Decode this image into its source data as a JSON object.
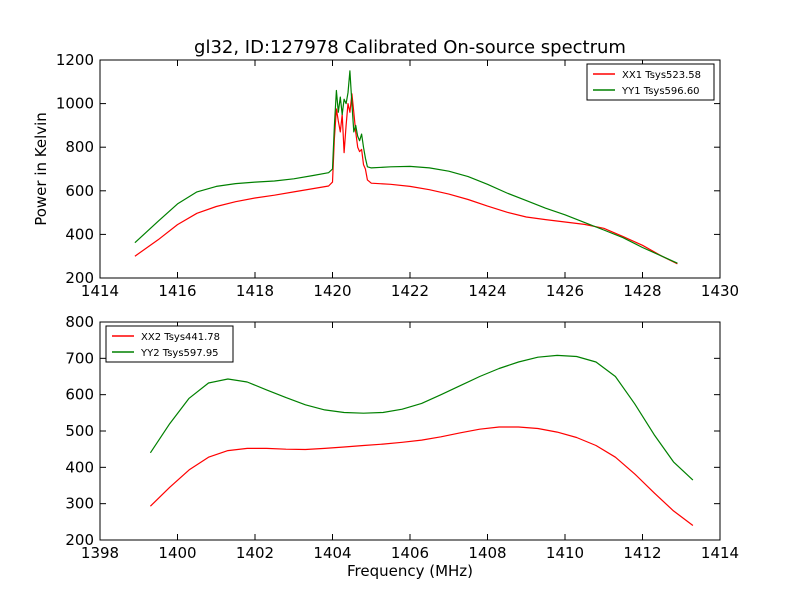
{
  "chart_data": [
    {
      "type": "line",
      "title": "gl32, ID:127978 Calibrated On-source spectrum",
      "xlabel": "",
      "ylabel": "Power in Kelvin",
      "xlim": [
        1414,
        1430
      ],
      "ylim": [
        200,
        1200
      ],
      "xticks": [
        1414,
        1416,
        1418,
        1420,
        1422,
        1424,
        1426,
        1428,
        1430
      ],
      "yticks": [
        200,
        400,
        600,
        800,
        1000,
        1200
      ],
      "legend_position": "top-right",
      "series": [
        {
          "name": "XX1 Tsys523.58",
          "color": "#ff0000",
          "x": [
            1414.9,
            1415.5,
            1416.0,
            1416.5,
            1417.0,
            1417.5,
            1418.0,
            1418.5,
            1419.0,
            1419.5,
            1419.9,
            1420.0,
            1420.05,
            1420.1,
            1420.15,
            1420.2,
            1420.25,
            1420.3,
            1420.35,
            1420.4,
            1420.45,
            1420.5,
            1420.55,
            1420.6,
            1420.65,
            1420.7,
            1420.75,
            1420.8,
            1420.85,
            1420.9,
            1421.0,
            1421.5,
            1422.0,
            1422.5,
            1423.0,
            1423.5,
            1424.0,
            1424.5,
            1425.0,
            1425.5,
            1426.0,
            1426.5,
            1427.0,
            1427.5,
            1428.0,
            1428.5,
            1428.9
          ],
          "values": [
            300,
            375,
            445,
            497,
            528,
            550,
            567,
            580,
            595,
            610,
            622,
            640,
            840,
            975,
            920,
            870,
            950,
            775,
            900,
            1000,
            960,
            1045,
            960,
            870,
            800,
            780,
            790,
            720,
            700,
            650,
            635,
            630,
            620,
            605,
            585,
            560,
            530,
            502,
            480,
            468,
            457,
            446,
            428,
            390,
            350,
            300,
            265
          ]
        },
        {
          "name": "YY1 Tsys596.60",
          "color": "#008000",
          "x": [
            1414.9,
            1415.5,
            1416.0,
            1416.5,
            1417.0,
            1417.5,
            1418.0,
            1418.5,
            1419.0,
            1419.5,
            1419.9,
            1420.0,
            1420.05,
            1420.1,
            1420.15,
            1420.2,
            1420.25,
            1420.3,
            1420.35,
            1420.4,
            1420.45,
            1420.5,
            1420.55,
            1420.6,
            1420.65,
            1420.7,
            1420.75,
            1420.8,
            1420.85,
            1420.9,
            1421.0,
            1421.5,
            1422.0,
            1422.5,
            1423.0,
            1423.5,
            1424.0,
            1424.5,
            1425.0,
            1425.5,
            1426.0,
            1426.5,
            1427.0,
            1427.5,
            1428.0,
            1428.5,
            1428.9
          ],
          "values": [
            362,
            460,
            540,
            595,
            620,
            633,
            640,
            645,
            655,
            670,
            683,
            700,
            900,
            1060,
            960,
            1030,
            950,
            1020,
            1000,
            1050,
            1150,
            1000,
            870,
            900,
            850,
            830,
            860,
            800,
            750,
            710,
            705,
            710,
            712,
            705,
            690,
            665,
            630,
            590,
            555,
            520,
            490,
            455,
            420,
            385,
            340,
            300,
            268
          ]
        }
      ]
    },
    {
      "type": "line",
      "title": "",
      "xlabel": "Frequency (MHz)",
      "ylabel": "",
      "xlim": [
        1398,
        1414
      ],
      "ylim": [
        200,
        800
      ],
      "xticks": [
        1398,
        1400,
        1402,
        1404,
        1406,
        1408,
        1410,
        1412,
        1414
      ],
      "yticks": [
        200,
        300,
        400,
        500,
        600,
        700,
        800
      ],
      "legend_position": "top-left",
      "series": [
        {
          "name": "XX2 Tsys441.78",
          "color": "#ff0000",
          "x": [
            1399.3,
            1399.8,
            1400.3,
            1400.8,
            1401.3,
            1401.8,
            1402.3,
            1402.8,
            1403.3,
            1403.8,
            1404.3,
            1404.8,
            1405.3,
            1405.8,
            1406.3,
            1406.8,
            1407.3,
            1407.8,
            1408.3,
            1408.8,
            1409.3,
            1409.8,
            1410.3,
            1410.8,
            1411.3,
            1411.8,
            1412.3,
            1412.8,
            1413.3
          ],
          "values": [
            293,
            345,
            393,
            428,
            446,
            452,
            452,
            450,
            449,
            452,
            456,
            460,
            464,
            469,
            475,
            484,
            495,
            505,
            511,
            511,
            507,
            497,
            482,
            460,
            428,
            382,
            330,
            280,
            240
          ]
        },
        {
          "name": "YY2 Tsys597.95",
          "color": "#008000",
          "x": [
            1399.3,
            1399.8,
            1400.3,
            1400.8,
            1401.3,
            1401.8,
            1402.3,
            1402.8,
            1403.3,
            1403.8,
            1404.3,
            1404.8,
            1405.3,
            1405.8,
            1406.3,
            1406.8,
            1407.3,
            1407.8,
            1408.3,
            1408.8,
            1409.3,
            1409.8,
            1410.3,
            1410.8,
            1411.3,
            1411.8,
            1412.3,
            1412.8,
            1413.3
          ],
          "values": [
            440,
            520,
            590,
            632,
            643,
            635,
            613,
            592,
            572,
            558,
            551,
            549,
            551,
            560,
            576,
            600,
            625,
            650,
            672,
            690,
            703,
            708,
            705,
            690,
            650,
            575,
            490,
            415,
            365
          ]
        }
      ]
    }
  ]
}
